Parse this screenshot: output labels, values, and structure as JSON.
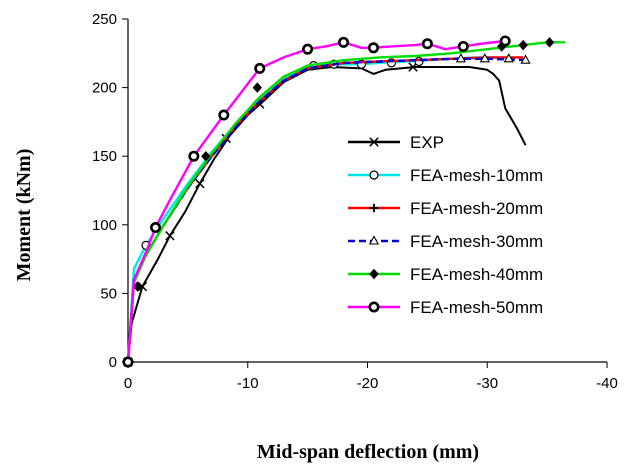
{
  "chart_data": {
    "type": "line",
    "xlabel": "Mid-span deflection (mm)",
    "ylabel": "Moment (kNm)",
    "xlim": [
      0,
      -40
    ],
    "ylim": [
      0,
      250
    ],
    "x_ticks": [
      0,
      -10,
      -20,
      -30,
      -40
    ],
    "y_ticks": [
      0,
      50,
      100,
      150,
      200,
      250
    ],
    "x_tick_labels": [
      "0",
      "-10",
      "-20",
      "-30",
      "-40"
    ],
    "y_tick_labels": [
      "0",
      "50",
      "100",
      "150",
      "200",
      "250"
    ],
    "grid": false,
    "legend_position": "center-right",
    "series": [
      {
        "name": "EXP",
        "color": "#000000",
        "dash": "solid",
        "marker": "x",
        "x": [
          0,
          -0.3,
          -1.2,
          -2.5,
          -3.5,
          -4.8,
          -6.0,
          -7.2,
          -8.5,
          -10.0,
          -11.3,
          -13.0,
          -15.0,
          -17.0,
          -19.5,
          -20.5,
          -21.5,
          -24.0,
          -26.5,
          -28.5,
          -30.0,
          -30.5,
          -31.0,
          -31.5,
          -32.5,
          -33.2
        ],
        "y": [
          0,
          28,
          55,
          75,
          92,
          110,
          130,
          148,
          165,
          180,
          190,
          204,
          213,
          215,
          214,
          210,
          213,
          215,
          215,
          215,
          213,
          210,
          205,
          185,
          170,
          158
        ],
        "marker_x": [
          0,
          -1.2,
          -3.5,
          -6.0,
          -8.2,
          -11.0,
          -23.8
        ],
        "marker_y": [
          0,
          55,
          92,
          130,
          163,
          188,
          215
        ]
      },
      {
        "name": "FEA-mesh-10mm",
        "color": "#00e5e5",
        "dash": "solid",
        "marker": "circle",
        "x": [
          0,
          -0.5,
          -1.5,
          -3.0,
          -5.0,
          -7.0,
          -9.0,
          -11.0,
          -13.0,
          -15.0,
          -17.0,
          -19.0,
          -21.0,
          -23.0,
          -25.0,
          -27.0,
          -29.0,
          -31.0
        ],
        "y": [
          0,
          68,
          85,
          105,
          130,
          153,
          173,
          192,
          207,
          215,
          217,
          217,
          218,
          219,
          220,
          221,
          222,
          222
        ],
        "marker_x": [
          0,
          -1.5,
          -15.5,
          -17.2,
          -19.5,
          -22.0,
          -24.3
        ],
        "marker_y": [
          0,
          85,
          216,
          217,
          217,
          218,
          219
        ]
      },
      {
        "name": "FEA-mesh-20mm",
        "color": "#ff0000",
        "dash": "solid",
        "marker": "plus",
        "x": [
          0,
          -0.5,
          -1.5,
          -3.0,
          -5.0,
          -7.0,
          -9.0,
          -11.0,
          -13.0,
          -15.0,
          -18.0,
          -21.0,
          -24.0,
          -27.0,
          -30.0,
          -33.0
        ],
        "y": [
          0,
          60,
          78,
          100,
          127,
          150,
          172,
          190,
          205,
          214,
          218,
          219,
          220,
          221,
          222,
          222
        ],
        "marker_x": [],
        "marker_y": []
      },
      {
        "name": "FEA-mesh-30mm",
        "color": "#0000cc",
        "dash": "dash",
        "marker": "triangle",
        "x": [
          0,
          -0.5,
          -1.5,
          -3.0,
          -5.0,
          -7.0,
          -9.0,
          -11.0,
          -13.0,
          -15.0,
          -18.0,
          -21.0,
          -24.0,
          -27.0,
          -30.0,
          -33.5
        ],
        "y": [
          0,
          60,
          78,
          100,
          127,
          150,
          171,
          190,
          205,
          214,
          218,
          219,
          220,
          221,
          221,
          220
        ],
        "marker_x": [
          -27.8,
          -29.8,
          -31.8,
          -33.2
        ],
        "marker_y": [
          221,
          221,
          221,
          220
        ]
      },
      {
        "name": "FEA-mesh-40mm",
        "color": "#00dd00",
        "dash": "solid",
        "marker": "diamond",
        "x": [
          0,
          -0.5,
          -1.5,
          -3.0,
          -5.0,
          -7.0,
          -9.0,
          -11.0,
          -13.0,
          -15.0,
          -18.0,
          -21.0,
          -24.0,
          -27.0,
          -30.0,
          -33.0,
          -35.0,
          -36.5
        ],
        "y": [
          0,
          58,
          78,
          100,
          128,
          152,
          174,
          193,
          208,
          216,
          220,
          222,
          223,
          225,
          228,
          231,
          233,
          233
        ],
        "marker_x": [
          -0.8,
          -6.5,
          -10.8,
          -31.2,
          -33.0,
          -35.2
        ],
        "marker_y": [
          55,
          150,
          200,
          230,
          231,
          233
        ]
      },
      {
        "name": "FEA-mesh-50mm",
        "color": "#ff00ff",
        "dash": "solid",
        "marker": "circle-bold",
        "x": [
          0,
          -0.5,
          -1.5,
          -2.3,
          -3.5,
          -5.5,
          -8.0,
          -11.0,
          -13.0,
          -15.0,
          -16.5,
          -18.0,
          -19.5,
          -20.5,
          -22.0,
          -24.0,
          -25.0,
          -26.5,
          -28.0,
          -29.5,
          -31.5
        ],
        "y": [
          0,
          60,
          80,
          98,
          118,
          150,
          180,
          214,
          222,
          228,
          230,
          233,
          229,
          229,
          230,
          231,
          232,
          228,
          230,
          232,
          234
        ],
        "marker_x": [
          0,
          -2.3,
          -5.5,
          -8.0,
          -11.0,
          -15.0,
          -18.0,
          -20.5,
          -25.0,
          -28.0,
          -31.5
        ],
        "marker_y": [
          0,
          98,
          150,
          180,
          214,
          228,
          233,
          229,
          232,
          230,
          234
        ]
      }
    ]
  }
}
